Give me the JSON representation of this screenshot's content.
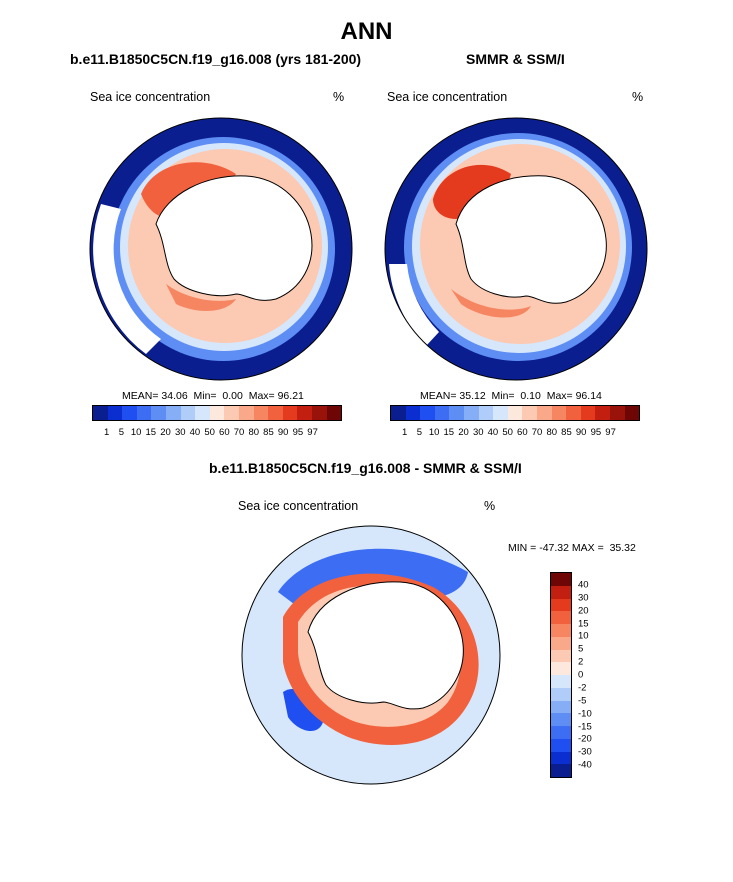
{
  "title": "ANN",
  "colors": {
    "land": "#ffffff",
    "coast": "#000000",
    "abs_scale": [
      "#0b1e8f",
      "#0a2ed0",
      "#1f4ff0",
      "#3d6df2",
      "#5e8df4",
      "#86aef6",
      "#b0ccf8",
      "#d6e7fb",
      "#fde8dd",
      "#fcc9b2",
      "#f9a889",
      "#f68662",
      "#f1613d",
      "#e43a1e",
      "#c21f11",
      "#9a130a",
      "#6d0605"
    ],
    "diff_scale": [
      "#0b1e8f",
      "#0a2ed0",
      "#1f4ff0",
      "#3d6df2",
      "#5e8df4",
      "#86aef6",
      "#b0ccf8",
      "#d6e7fb",
      "#fde8dd",
      "#fcc9b2",
      "#f9a889",
      "#f68662",
      "#f1613d",
      "#e43a1e",
      "#c21f11",
      "#6d0605"
    ]
  },
  "chart_data": [
    {
      "type": "heatmap",
      "projection": "south-polar-stereographic",
      "title": "b.e11.B1850C5CN.f19_g16.008 (yrs 181-200)",
      "left_label": "Sea ice concentration",
      "right_label": "%",
      "stats": {
        "mean_label": "MEAN=",
        "mean": "34.06",
        "min_label": "Min=",
        "min": "0.00",
        "max_label": "Max=",
        "max": "96.21"
      },
      "colorbar_levels": [
        "1",
        "5",
        "10",
        "15",
        "20",
        "30",
        "40",
        "50",
        "60",
        "70",
        "80",
        "85",
        "90",
        "95",
        "97"
      ]
    },
    {
      "type": "heatmap",
      "projection": "south-polar-stereographic",
      "title": "SMMR & SSM/I",
      "left_label": "Sea ice concentration",
      "right_label": "%",
      "stats": {
        "mean_label": "MEAN=",
        "mean": "35.12",
        "min_label": "Min=",
        "min": "0.10",
        "max_label": "Max=",
        "max": "96.14"
      },
      "colorbar_levels": [
        "1",
        "5",
        "10",
        "15",
        "20",
        "30",
        "40",
        "50",
        "60",
        "70",
        "80",
        "85",
        "90",
        "95",
        "97"
      ]
    },
    {
      "type": "heatmap",
      "projection": "south-polar-stereographic",
      "title": "b.e11.B1850C5CN.f19_g16.008 - SMMR & SSM/I",
      "left_label": "Sea ice concentration",
      "right_label": "%",
      "minmax": {
        "min_label": "MIN =",
        "min": "-47.32",
        "max_label": "MAX =",
        "max": "35.32"
      },
      "colorbar_levels": [
        "40",
        "30",
        "20",
        "15",
        "10",
        "5",
        "2",
        "0",
        "-2",
        "-5",
        "-10",
        "-15",
        "-20",
        "-30",
        "-40"
      ]
    }
  ]
}
